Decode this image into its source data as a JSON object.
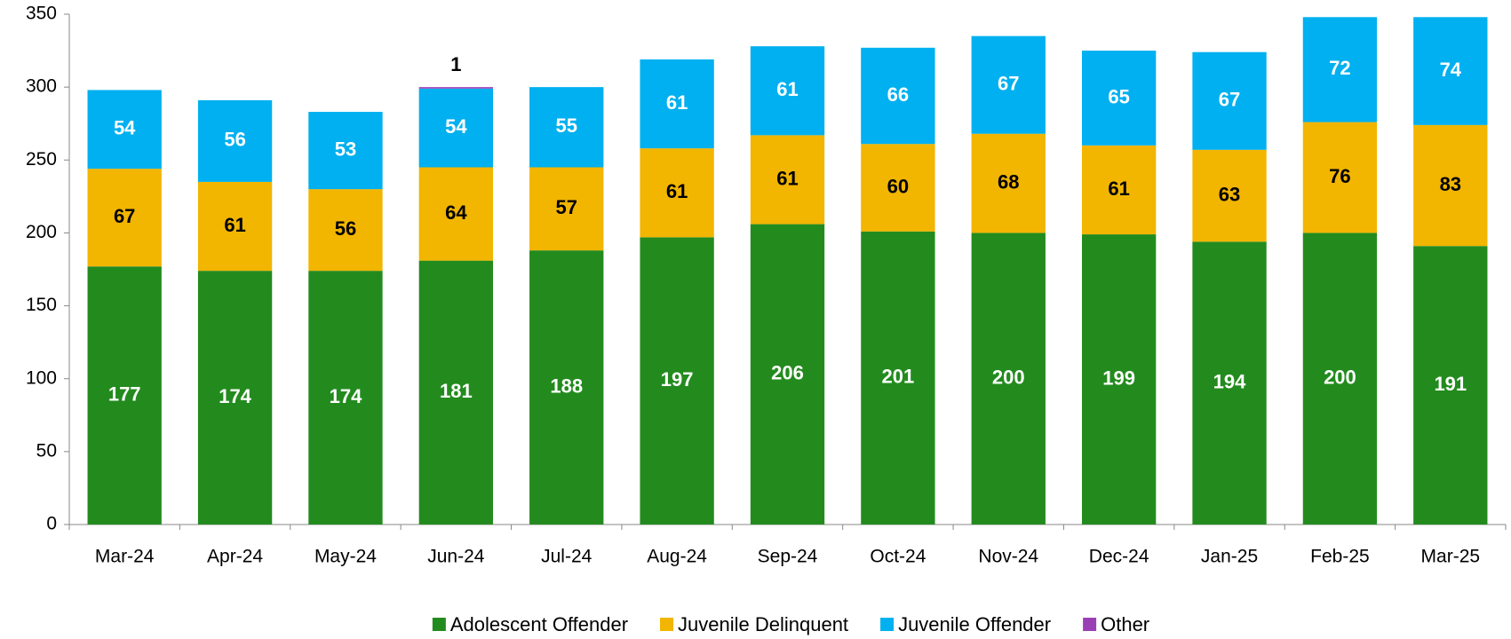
{
  "chart_data": {
    "type": "stacked-bar",
    "categories": [
      "Mar-24",
      "Apr-24",
      "May-24",
      "Jun-24",
      "Jul-24",
      "Aug-24",
      "Sep-24",
      "Oct-24",
      "Nov-24",
      "Dec-24",
      "Jan-25",
      "Feb-25",
      "Mar-25"
    ],
    "series": [
      {
        "name": "Adolescent Offender",
        "color": "#238b1e",
        "label_color": "#ffffff",
        "values": [
          177,
          174,
          174,
          181,
          188,
          197,
          206,
          201,
          200,
          199,
          194,
          200,
          191
        ]
      },
      {
        "name": "Juvenile Delinquent",
        "color": "#f2b500",
        "label_color": "#000000",
        "values": [
          67,
          61,
          56,
          64,
          57,
          61,
          61,
          60,
          68,
          61,
          63,
          76,
          83
        ]
      },
      {
        "name": "Juvenile Offender",
        "color": "#00b0f0",
        "label_color": "#ffffff",
        "values": [
          54,
          56,
          53,
          54,
          55,
          61,
          61,
          66,
          67,
          65,
          67,
          72,
          74
        ]
      },
      {
        "name": "Other",
        "color": "#9b3fb5",
        "label_color": "#000000",
        "values": [
          null,
          null,
          null,
          1,
          null,
          null,
          null,
          null,
          null,
          null,
          null,
          null,
          null
        ]
      }
    ],
    "ylim": [
      0,
      350
    ],
    "yticks": [
      0,
      50,
      100,
      150,
      200,
      250,
      300,
      350
    ],
    "legend": "bottom"
  }
}
